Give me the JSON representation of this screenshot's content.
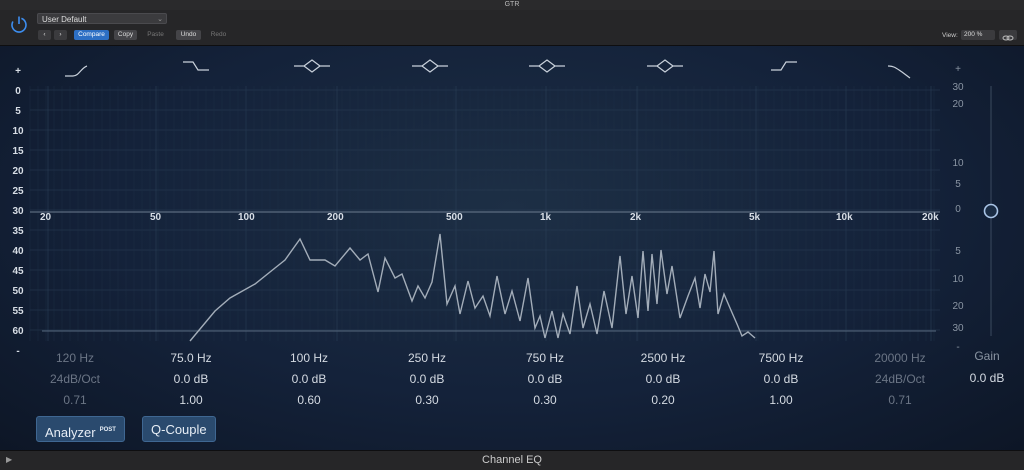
{
  "window": {
    "title": "GTR",
    "footer_title": "Channel EQ"
  },
  "header": {
    "preset": "User Default",
    "compare": "Compare",
    "copy": "Copy",
    "paste": "Paste",
    "undo": "Undo",
    "redo": "Redo",
    "view_label": "View:",
    "zoom": "200 %"
  },
  "graph": {
    "freq_labels": [
      "20",
      "50",
      "100",
      "200",
      "500",
      "1k",
      "2k",
      "5k",
      "10k",
      "20k"
    ],
    "db_left": [
      "+",
      "0",
      "5",
      "10",
      "15",
      "20",
      "25",
      "30",
      "35",
      "40",
      "45",
      "50",
      "55",
      "60",
      "-"
    ],
    "db_right": [
      "+",
      "30",
      "20",
      "10",
      "5",
      "0",
      "5",
      "10",
      "20",
      "30",
      "-"
    ]
  },
  "bands": [
    {
      "freq": "120 Hz",
      "gain": "24dB/Oct",
      "q": "0.71",
      "enabled": false
    },
    {
      "freq": "75.0 Hz",
      "gain": "0.0 dB",
      "q": "1.00",
      "enabled": true
    },
    {
      "freq": "100 Hz",
      "gain": "0.0 dB",
      "q": "0.60",
      "enabled": true
    },
    {
      "freq": "250 Hz",
      "gain": "0.0 dB",
      "q": "0.30",
      "enabled": true
    },
    {
      "freq": "750 Hz",
      "gain": "0.0 dB",
      "q": "0.30",
      "enabled": true
    },
    {
      "freq": "2500 Hz",
      "gain": "0.0 dB",
      "q": "0.20",
      "enabled": true
    },
    {
      "freq": "7500 Hz",
      "gain": "0.0 dB",
      "q": "1.00",
      "enabled": true
    },
    {
      "freq": "20000 Hz",
      "gain": "24dB/Oct",
      "q": "0.71",
      "enabled": false
    }
  ],
  "gain": {
    "label": "Gain",
    "value": "0.0 dB"
  },
  "buttons": {
    "analyzer": "Analyzer",
    "analyzer_badge": "POST",
    "q_couple": "Q-Couple"
  },
  "icons": [
    "power-icon",
    "chevron-down-icon",
    "back-icon",
    "forward-icon",
    "link-icon",
    "highpass-icon",
    "lowshelf-icon",
    "peak-icon",
    "highshelf-icon",
    "lowpass-icon"
  ],
  "colors": {
    "accent": "#2d6fc4",
    "curve": "#9ba6b3",
    "background": "#14223a"
  }
}
